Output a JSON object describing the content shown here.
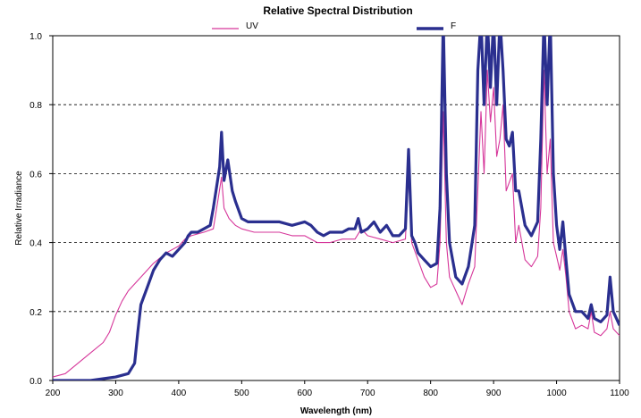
{
  "chart_data": {
    "type": "line",
    "title": "Relative Spectral Distribution",
    "xlabel": "Wavelength (nm)",
    "ylabel": "Relative Irradiance",
    "xlim": [
      200,
      1100
    ],
    "ylim": [
      0.0,
      1.0
    ],
    "x_ticks": [
      "200",
      "300",
      "400",
      "500",
      "600",
      "700",
      "800",
      "900",
      "1000",
      "1100"
    ],
    "y_ticks": [
      "0.0",
      "0.2",
      "0.4",
      "0.6",
      "0.8",
      "1.0"
    ],
    "grid": "horizontal dashed",
    "legend": "top",
    "series": [
      {
        "name": "UV",
        "color": "#d6369a",
        "points": [
          [
            200,
            0.01
          ],
          [
            220,
            0.02
          ],
          [
            240,
            0.05
          ],
          [
            260,
            0.08
          ],
          [
            280,
            0.11
          ],
          [
            290,
            0.14
          ],
          [
            300,
            0.19
          ],
          [
            310,
            0.23
          ],
          [
            320,
            0.26
          ],
          [
            340,
            0.3
          ],
          [
            360,
            0.34
          ],
          [
            380,
            0.37
          ],
          [
            400,
            0.39
          ],
          [
            410,
            0.41
          ],
          [
            420,
            0.42
          ],
          [
            440,
            0.43
          ],
          [
            455,
            0.44
          ],
          [
            462,
            0.52
          ],
          [
            468,
            0.59
          ],
          [
            472,
            0.5
          ],
          [
            480,
            0.47
          ],
          [
            490,
            0.45
          ],
          [
            500,
            0.44
          ],
          [
            520,
            0.43
          ],
          [
            540,
            0.43
          ],
          [
            560,
            0.43
          ],
          [
            580,
            0.42
          ],
          [
            600,
            0.42
          ],
          [
            620,
            0.4
          ],
          [
            640,
            0.4
          ],
          [
            660,
            0.41
          ],
          [
            680,
            0.41
          ],
          [
            690,
            0.44
          ],
          [
            700,
            0.42
          ],
          [
            720,
            0.41
          ],
          [
            740,
            0.4
          ],
          [
            760,
            0.41
          ],
          [
            765,
            0.6
          ],
          [
            770,
            0.4
          ],
          [
            790,
            0.3
          ],
          [
            800,
            0.27
          ],
          [
            810,
            0.28
          ],
          [
            815,
            0.4
          ],
          [
            820,
            0.78
          ],
          [
            825,
            0.4
          ],
          [
            830,
            0.3
          ],
          [
            840,
            0.26
          ],
          [
            850,
            0.22
          ],
          [
            860,
            0.28
          ],
          [
            870,
            0.33
          ],
          [
            880,
            0.78
          ],
          [
            885,
            0.6
          ],
          [
            890,
            0.9
          ],
          [
            895,
            0.75
          ],
          [
            900,
            0.85
          ],
          [
            905,
            0.65
          ],
          [
            910,
            0.7
          ],
          [
            915,
            0.8
          ],
          [
            920,
            0.55
          ],
          [
            930,
            0.6
          ],
          [
            935,
            0.4
          ],
          [
            940,
            0.45
          ],
          [
            950,
            0.35
          ],
          [
            960,
            0.33
          ],
          [
            970,
            0.36
          ],
          [
            975,
            0.5
          ],
          [
            980,
            0.9
          ],
          [
            985,
            0.6
          ],
          [
            990,
            0.7
          ],
          [
            995,
            0.4
          ],
          [
            1000,
            0.36
          ],
          [
            1005,
            0.32
          ],
          [
            1010,
            0.38
          ],
          [
            1015,
            0.3
          ],
          [
            1020,
            0.2
          ],
          [
            1030,
            0.15
          ],
          [
            1040,
            0.16
          ],
          [
            1050,
            0.15
          ],
          [
            1055,
            0.2
          ],
          [
            1060,
            0.14
          ],
          [
            1070,
            0.13
          ],
          [
            1080,
            0.15
          ],
          [
            1085,
            0.2
          ],
          [
            1090,
            0.15
          ],
          [
            1100,
            0.13
          ]
        ]
      },
      {
        "name": "F",
        "color": "#2a2f8f",
        "points": [
          [
            200,
            0.0
          ],
          [
            260,
            0.0
          ],
          [
            300,
            0.01
          ],
          [
            320,
            0.02
          ],
          [
            330,
            0.05
          ],
          [
            335,
            0.14
          ],
          [
            340,
            0.22
          ],
          [
            350,
            0.27
          ],
          [
            360,
            0.32
          ],
          [
            370,
            0.35
          ],
          [
            380,
            0.37
          ],
          [
            390,
            0.36
          ],
          [
            400,
            0.38
          ],
          [
            410,
            0.4
          ],
          [
            415,
            0.42
          ],
          [
            420,
            0.43
          ],
          [
            430,
            0.43
          ],
          [
            440,
            0.44
          ],
          [
            450,
            0.45
          ],
          [
            455,
            0.5
          ],
          [
            460,
            0.56
          ],
          [
            465,
            0.62
          ],
          [
            468,
            0.72
          ],
          [
            472,
            0.58
          ],
          [
            478,
            0.64
          ],
          [
            485,
            0.55
          ],
          [
            490,
            0.52
          ],
          [
            500,
            0.47
          ],
          [
            510,
            0.46
          ],
          [
            520,
            0.46
          ],
          [
            540,
            0.46
          ],
          [
            560,
            0.46
          ],
          [
            580,
            0.45
          ],
          [
            600,
            0.46
          ],
          [
            610,
            0.45
          ],
          [
            620,
            0.43
          ],
          [
            630,
            0.42
          ],
          [
            640,
            0.43
          ],
          [
            660,
            0.43
          ],
          [
            670,
            0.44
          ],
          [
            680,
            0.44
          ],
          [
            685,
            0.47
          ],
          [
            690,
            0.43
          ],
          [
            700,
            0.44
          ],
          [
            710,
            0.46
          ],
          [
            720,
            0.43
          ],
          [
            730,
            0.45
          ],
          [
            740,
            0.42
          ],
          [
            750,
            0.42
          ],
          [
            760,
            0.44
          ],
          [
            765,
            0.67
          ],
          [
            770,
            0.42
          ],
          [
            775,
            0.4
          ],
          [
            780,
            0.37
          ],
          [
            790,
            0.35
          ],
          [
            800,
            0.33
          ],
          [
            810,
            0.34
          ],
          [
            815,
            0.5
          ],
          [
            820,
            1.05
          ],
          [
            825,
            0.6
          ],
          [
            830,
            0.4
          ],
          [
            840,
            0.3
          ],
          [
            850,
            0.28
          ],
          [
            860,
            0.33
          ],
          [
            870,
            0.45
          ],
          [
            875,
            0.9
          ],
          [
            880,
            1.05
          ],
          [
            885,
            0.8
          ],
          [
            890,
            1.05
          ],
          [
            895,
            0.85
          ],
          [
            900,
            1.05
          ],
          [
            905,
            0.8
          ],
          [
            910,
            1.05
          ],
          [
            915,
            0.9
          ],
          [
            920,
            0.7
          ],
          [
            925,
            0.68
          ],
          [
            930,
            0.72
          ],
          [
            935,
            0.55
          ],
          [
            940,
            0.55
          ],
          [
            950,
            0.45
          ],
          [
            960,
            0.42
          ],
          [
            970,
            0.46
          ],
          [
            975,
            0.7
          ],
          [
            980,
            1.05
          ],
          [
            985,
            0.8
          ],
          [
            990,
            1.05
          ],
          [
            995,
            0.6
          ],
          [
            1000,
            0.45
          ],
          [
            1005,
            0.38
          ],
          [
            1010,
            0.46
          ],
          [
            1015,
            0.35
          ],
          [
            1020,
            0.25
          ],
          [
            1030,
            0.2
          ],
          [
            1040,
            0.2
          ],
          [
            1050,
            0.18
          ],
          [
            1055,
            0.22
          ],
          [
            1060,
            0.18
          ],
          [
            1070,
            0.17
          ],
          [
            1080,
            0.19
          ],
          [
            1085,
            0.3
          ],
          [
            1090,
            0.2
          ],
          [
            1100,
            0.16
          ]
        ]
      }
    ]
  }
}
